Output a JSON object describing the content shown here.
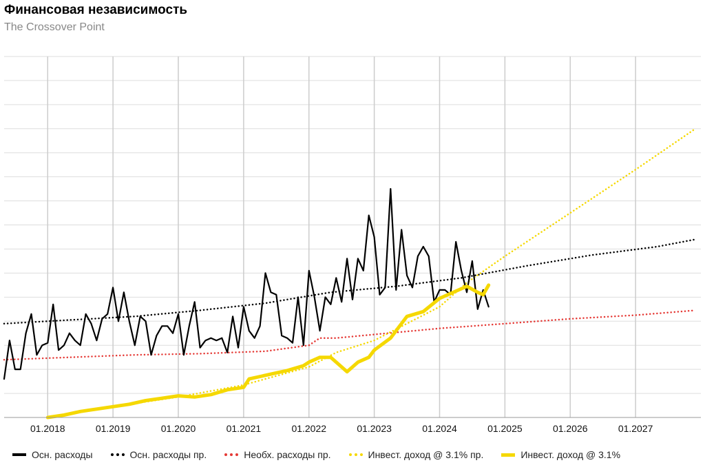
{
  "header": {
    "title": "Финансовая независимость",
    "subtitle": "The Crossover Point"
  },
  "chart_data": {
    "type": "line",
    "title": "Финансовая независимость",
    "subtitle": "The Crossover Point",
    "x_axis": {
      "type": "date",
      "range": [
        "2017-05",
        "2028-01"
      ],
      "tick_labels": [
        "01.2018",
        "01.2019",
        "01.2020",
        "01.2021",
        "01.2022",
        "01.2023",
        "01.2024",
        "01.2025",
        "01.2026",
        "01.2027"
      ]
    },
    "y_axis": {
      "range": [
        0,
        15
      ],
      "tick_labels_shown": false
    },
    "grid": true,
    "legend_position": "bottom",
    "series": [
      {
        "name": "Осн. расходы",
        "color": "#000000",
        "style": "solid",
        "points": [
          [
            "2017-05",
            1.6
          ],
          [
            "2017-06",
            3.2
          ],
          [
            "2017-07",
            2.0
          ],
          [
            "2017-08",
            2.0
          ],
          [
            "2017-09",
            3.5
          ],
          [
            "2017-10",
            4.3
          ],
          [
            "2017-11",
            2.6
          ],
          [
            "2017-12",
            3.0
          ],
          [
            "2018-01",
            3.1
          ],
          [
            "2018-02",
            4.7
          ],
          [
            "2018-03",
            2.8
          ],
          [
            "2018-04",
            3.0
          ],
          [
            "2018-05",
            3.5
          ],
          [
            "2018-06",
            3.2
          ],
          [
            "2018-07",
            3.0
          ],
          [
            "2018-08",
            4.3
          ],
          [
            "2018-09",
            3.9
          ],
          [
            "2018-10",
            3.2
          ],
          [
            "2018-11",
            4.1
          ],
          [
            "2018-12",
            4.3
          ],
          [
            "2019-01",
            5.4
          ],
          [
            "2019-02",
            4.0
          ],
          [
            "2019-03",
            5.2
          ],
          [
            "2019-04",
            4.0
          ],
          [
            "2019-05",
            3.0
          ],
          [
            "2019-06",
            4.2
          ],
          [
            "2019-07",
            4.0
          ],
          [
            "2019-08",
            2.6
          ],
          [
            "2019-09",
            3.4
          ],
          [
            "2019-10",
            3.8
          ],
          [
            "2019-11",
            3.8
          ],
          [
            "2019-12",
            3.5
          ],
          [
            "2020-01",
            4.3
          ],
          [
            "2020-02",
            2.6
          ],
          [
            "2020-03",
            3.8
          ],
          [
            "2020-04",
            4.8
          ],
          [
            "2020-05",
            2.9
          ],
          [
            "2020-06",
            3.2
          ],
          [
            "2020-07",
            3.3
          ],
          [
            "2020-08",
            3.2
          ],
          [
            "2020-09",
            3.3
          ],
          [
            "2020-10",
            2.7
          ],
          [
            "2020-11",
            4.2
          ],
          [
            "2020-12",
            2.9
          ],
          [
            "2021-01",
            4.6
          ],
          [
            "2021-02",
            3.6
          ],
          [
            "2021-03",
            3.3
          ],
          [
            "2021-04",
            3.8
          ],
          [
            "2021-05",
            6.0
          ],
          [
            "2021-06",
            5.2
          ],
          [
            "2021-07",
            5.1
          ],
          [
            "2021-08",
            3.4
          ],
          [
            "2021-09",
            3.3
          ],
          [
            "2021-10",
            3.1
          ],
          [
            "2021-11",
            5.0
          ],
          [
            "2021-12",
            3.0
          ],
          [
            "2022-01",
            6.1
          ],
          [
            "2022-02",
            5.0
          ],
          [
            "2022-03",
            3.6
          ],
          [
            "2022-04",
            5.0
          ],
          [
            "2022-05",
            4.7
          ],
          [
            "2022-06",
            5.8
          ],
          [
            "2022-07",
            4.8
          ],
          [
            "2022-08",
            6.6
          ],
          [
            "2022-09",
            4.9
          ],
          [
            "2022-10",
            6.6
          ],
          [
            "2022-11",
            6.1
          ],
          [
            "2022-12",
            8.4
          ],
          [
            "2023-01",
            7.5
          ],
          [
            "2023-02",
            5.1
          ],
          [
            "2023-03",
            5.4
          ],
          [
            "2023-04",
            9.5
          ],
          [
            "2023-05",
            5.3
          ],
          [
            "2023-06",
            7.8
          ],
          [
            "2023-07",
            5.9
          ],
          [
            "2023-08",
            5.4
          ],
          [
            "2023-09",
            6.7
          ],
          [
            "2023-10",
            7.1
          ],
          [
            "2023-11",
            6.7
          ],
          [
            "2023-12",
            4.8
          ],
          [
            "2024-01",
            5.3
          ],
          [
            "2024-02",
            5.3
          ],
          [
            "2024-03",
            5.1
          ],
          [
            "2024-04",
            7.3
          ],
          [
            "2024-05",
            6.1
          ],
          [
            "2024-06",
            5.2
          ],
          [
            "2024-07",
            6.5
          ],
          [
            "2024-08",
            4.5
          ],
          [
            "2024-09",
            5.3
          ],
          [
            "2024-10",
            4.6
          ]
        ]
      },
      {
        "name": "Осн. расходы пр.",
        "color": "#000000",
        "style": "dotted",
        "points": [
          [
            "2017-05",
            3.9
          ],
          [
            "2018-05",
            4.05
          ],
          [
            "2019-05",
            4.2
          ],
          [
            "2020-05",
            4.45
          ],
          [
            "2021-05",
            4.75
          ],
          [
            "2022-05",
            5.2
          ],
          [
            "2023-05",
            5.45
          ],
          [
            "2024-05",
            5.8
          ],
          [
            "2025-05",
            6.3
          ],
          [
            "2026-05",
            6.75
          ],
          [
            "2027-05",
            7.1
          ],
          [
            "2027-12",
            7.4
          ]
        ]
      },
      {
        "name": "Необх. расходы пр.",
        "color": "#e53935",
        "style": "dotted",
        "points": [
          [
            "2017-05",
            2.4
          ],
          [
            "2018-05",
            2.5
          ],
          [
            "2019-05",
            2.6
          ],
          [
            "2020-05",
            2.65
          ],
          [
            "2021-05",
            2.75
          ],
          [
            "2022-01",
            3.0
          ],
          [
            "2022-03",
            3.3
          ],
          [
            "2022-06",
            3.3
          ],
          [
            "2023-01",
            3.45
          ],
          [
            "2024-01",
            3.7
          ],
          [
            "2025-01",
            3.9
          ],
          [
            "2026-01",
            4.1
          ],
          [
            "2027-01",
            4.25
          ],
          [
            "2027-12",
            4.45
          ]
        ]
      },
      {
        "name": "Инвест. доход @ 3.1% пр.",
        "color": "#f5d800",
        "style": "dotted",
        "points": [
          [
            "2018-01",
            0.0
          ],
          [
            "2019-01",
            0.45
          ],
          [
            "2020-01",
            0.85
          ],
          [
            "2021-01",
            1.35
          ],
          [
            "2022-01",
            2.1
          ],
          [
            "2022-06",
            2.7
          ],
          [
            "2023-01",
            3.2
          ],
          [
            "2024-01",
            4.6
          ],
          [
            "2024-06",
            5.6
          ],
          [
            "2025-01",
            6.7
          ],
          [
            "2026-01",
            8.5
          ],
          [
            "2027-01",
            10.3
          ],
          [
            "2027-12",
            12.0
          ]
        ]
      },
      {
        "name": "Инвест. доход @ 3.1%",
        "color": "#f5d800",
        "style": "solid",
        "points": [
          [
            "2018-01",
            0.0
          ],
          [
            "2018-04",
            0.1
          ],
          [
            "2018-07",
            0.25
          ],
          [
            "2018-10",
            0.35
          ],
          [
            "2019-01",
            0.45
          ],
          [
            "2019-04",
            0.55
          ],
          [
            "2019-07",
            0.7
          ],
          [
            "2019-10",
            0.8
          ],
          [
            "2020-01",
            0.9
          ],
          [
            "2020-04",
            0.85
          ],
          [
            "2020-07",
            0.95
          ],
          [
            "2020-10",
            1.15
          ],
          [
            "2021-01",
            1.25
          ],
          [
            "2021-02",
            1.6
          ],
          [
            "2021-06",
            1.8
          ],
          [
            "2021-09",
            1.95
          ],
          [
            "2021-12",
            2.15
          ],
          [
            "2022-01",
            2.3
          ],
          [
            "2022-03",
            2.5
          ],
          [
            "2022-05",
            2.5
          ],
          [
            "2022-08",
            1.9
          ],
          [
            "2022-10",
            2.3
          ],
          [
            "2022-12",
            2.5
          ],
          [
            "2023-01",
            2.8
          ],
          [
            "2023-04",
            3.3
          ],
          [
            "2023-07",
            4.2
          ],
          [
            "2023-10",
            4.4
          ],
          [
            "2024-01",
            4.95
          ],
          [
            "2024-03",
            5.15
          ],
          [
            "2024-06",
            5.45
          ],
          [
            "2024-08",
            5.2
          ],
          [
            "2024-09",
            5.1
          ],
          [
            "2024-10",
            5.5
          ]
        ]
      }
    ]
  },
  "legend": [
    {
      "label": "Осн. расходы",
      "color": "#000000",
      "style": "solid"
    },
    {
      "label": "Осн. расходы пр.",
      "color": "#000000",
      "style": "dotted"
    },
    {
      "label": "Необх. расходы пр.",
      "color": "#e53935",
      "style": "dotted"
    },
    {
      "label": "Инвест. доход @ 3.1% пр.",
      "color": "#f5d800",
      "style": "dotted"
    },
    {
      "label": "Инвест. доход @ 3.1%",
      "color": "#f5d800",
      "style": "solid"
    }
  ]
}
